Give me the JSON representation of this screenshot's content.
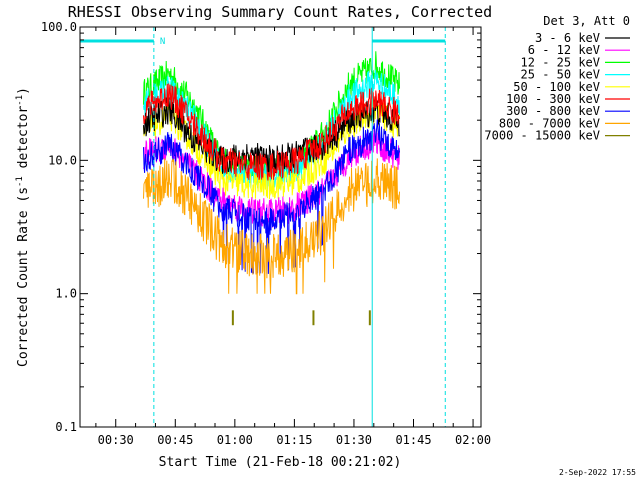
{
  "chart_data": {
    "type": "line",
    "title": "RHESSI Observing Summary Count Rates, Corrected",
    "xlabel": "Start Time (21-Feb-18 00:21:02)",
    "ylabel_main": "Corrected Count Rate (s",
    "ylabel_sup1": "-1",
    "ylabel_mid": " detector",
    "ylabel_sup2": "-1",
    "ylabel_end": ")",
    "y_scale": "log",
    "ylim": [
      0.1,
      100.0
    ],
    "xlim_minutes": [
      21.0,
      122.0
    ],
    "x_ticks": [
      {
        "value": 30,
        "label": "00:30"
      },
      {
        "value": 45,
        "label": "00:45"
      },
      {
        "value": 60,
        "label": "01:00"
      },
      {
        "value": 75,
        "label": "01:15"
      },
      {
        "value": 90,
        "label": "01:30"
      },
      {
        "value": 105,
        "label": "01:45"
      },
      {
        "value": 120,
        "label": "02:00"
      }
    ],
    "y_ticks": [
      {
        "value": 0.1,
        "label": "0.1"
      },
      {
        "value": 1.0,
        "label": "1.0"
      },
      {
        "value": 10.0,
        "label": "10.0"
      },
      {
        "value": 100.0,
        "label": "100.0"
      }
    ],
    "legend_header": "Det 3, Att 0",
    "legend_position": "right",
    "data_start_min": 37.0,
    "data_end_min": 101.5,
    "series": [
      {
        "name": "3 - 6 keV",
        "color": "#000000",
        "values": [
          19,
          24,
          14,
          10,
          11,
          10,
          11,
          13,
          20,
          24,
          19
        ]
      },
      {
        "name": "6 - 12 keV",
        "color": "#ff00ff",
        "values": [
          11,
          13,
          8,
          5,
          4.2,
          4,
          4.5,
          6,
          11,
          14,
          10
        ]
      },
      {
        "name": "12 - 25 keV",
        "color": "#00ff00",
        "values": [
          32,
          45,
          25,
          10,
          9,
          8.5,
          9.5,
          16,
          38,
          52,
          36
        ]
      },
      {
        "name": "25 - 50 keV",
        "color": "#00ffff",
        "values": [
          26,
          35,
          20,
          9,
          8,
          7.5,
          8.5,
          14,
          30,
          40,
          28
        ]
      },
      {
        "name": "50 - 100 keV",
        "color": "#ffff00",
        "values": [
          16,
          22,
          13,
          7,
          6.5,
          6.5,
          7,
          10,
          18,
          24,
          17
        ]
      },
      {
        "name": "100 - 300 keV",
        "color": "#ff0000",
        "values": [
          24,
          32,
          18,
          10,
          9,
          9,
          10,
          14,
          24,
          28,
          22
        ]
      },
      {
        "name": "300 - 800 keV",
        "color": "#0000ff",
        "values": [
          10,
          13,
          8,
          4.5,
          3.6,
          3.5,
          4,
          6,
          12,
          16,
          12
        ]
      },
      {
        "name": "800 - 7000 keV",
        "color": "#ffa500",
        "values": [
          5.5,
          7.5,
          4.5,
          2.4,
          2,
          1.9,
          2.1,
          3,
          6,
          7,
          6
        ]
      },
      {
        "name": "7000 - 15000 keV",
        "color": "#808000",
        "values": [
          null,
          null,
          null,
          null,
          null,
          null,
          null,
          null,
          null,
          null,
          null
        ]
      }
    ],
    "series_x_minutes": [
      37,
      43.5,
      50,
      56.5,
      63,
      69.5,
      76,
      82.5,
      89,
      95.5,
      101.5
    ],
    "saa_intervals_minutes": [
      [
        21.0,
        39.6
      ],
      [
        94.6,
        113.0
      ]
    ],
    "saa_vertical_lines_minutes": [
      21.0,
      39.6,
      94.6,
      113.0
    ],
    "night_marker_label": "N",
    "night_marker_minutes": 39.6,
    "olive_spikes_minutes": [
      59.5,
      79.8,
      94.0
    ],
    "footer_timestamp": "2-Sep-2022 17:55",
    "colors": {
      "axis": "#000000",
      "saa": "#00e0e0",
      "background": "#ffffff"
    }
  }
}
